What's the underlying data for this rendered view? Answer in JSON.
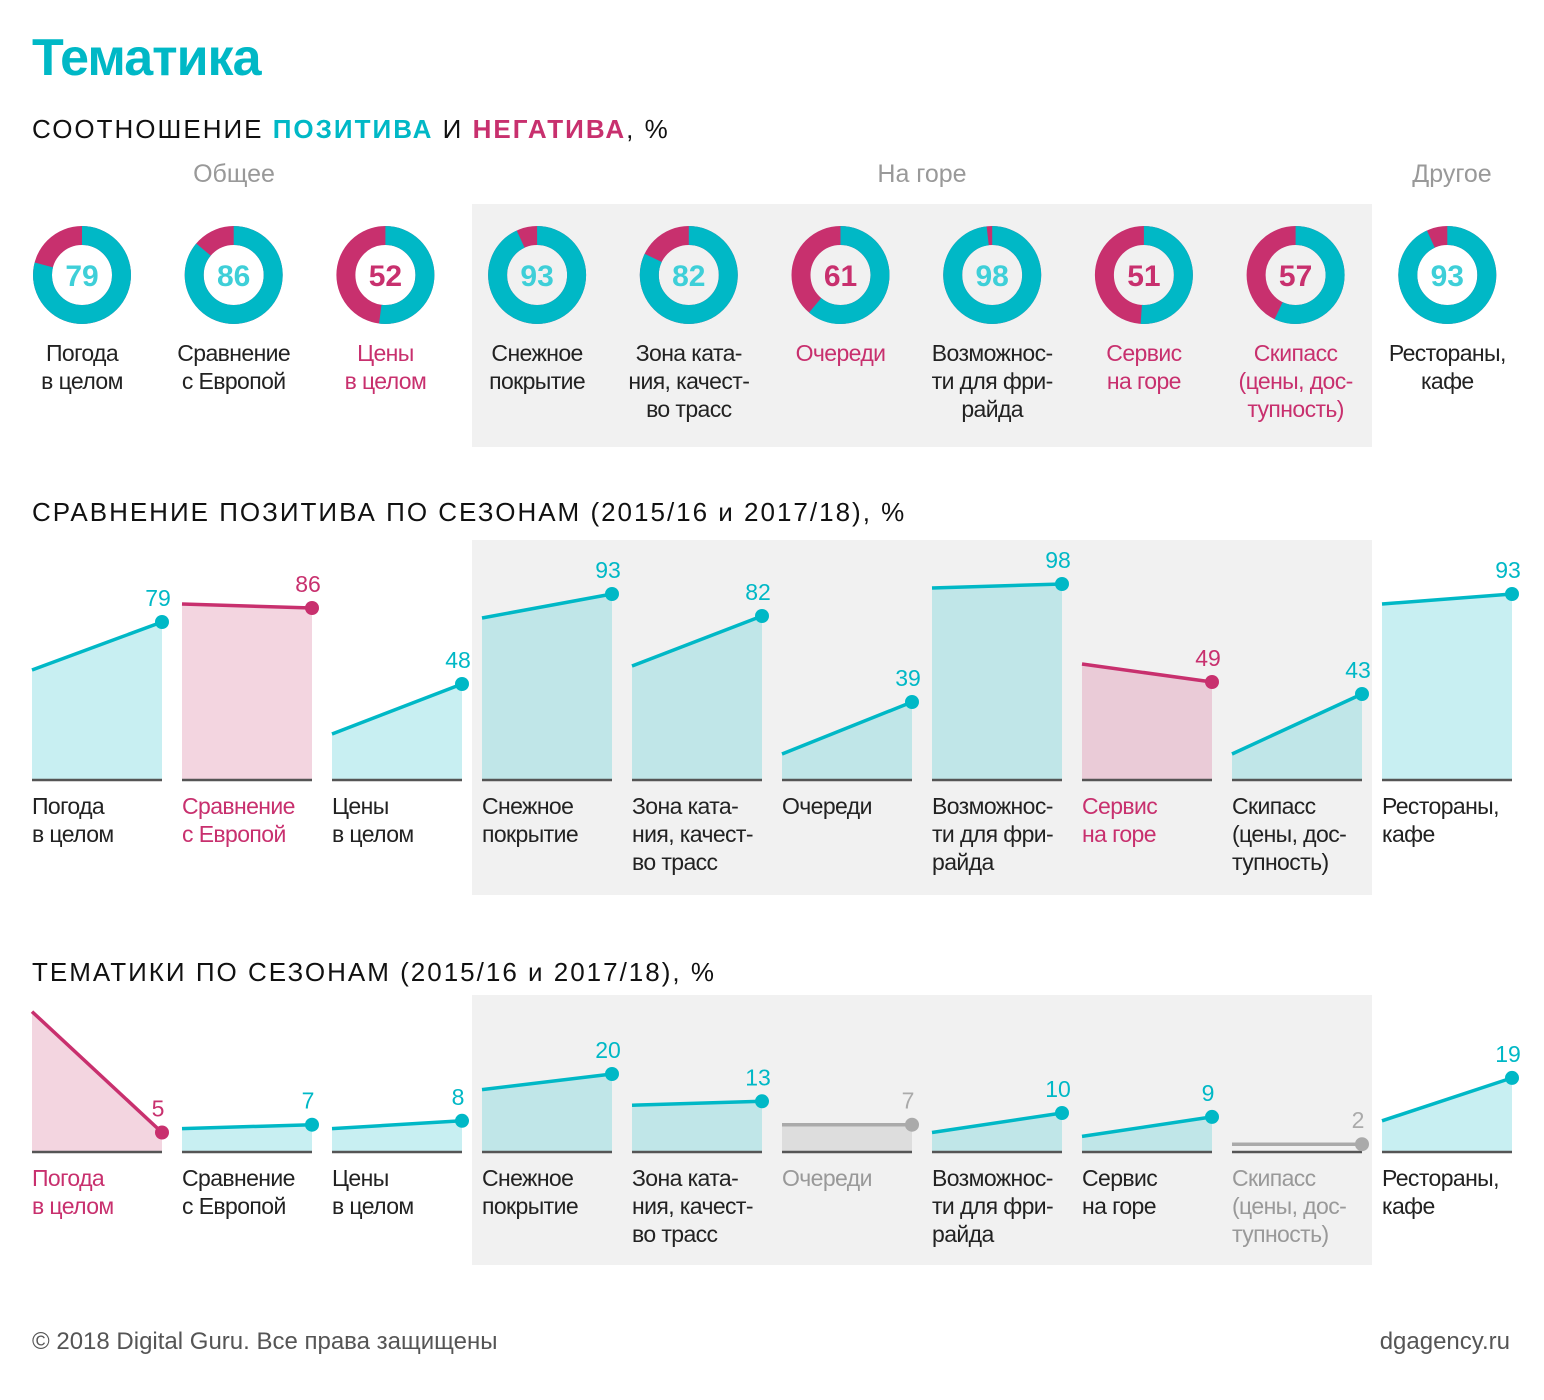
{
  "title": "Тематика",
  "section1": {
    "prefix": "СООТНОШЕНИЕ ",
    "positive_word": "ПОЗИТИВА",
    "mid": " И ",
    "negative_word": "НЕГАТИВА",
    "suffix": ", %"
  },
  "groups": [
    "Общее",
    "На горе",
    "Другое"
  ],
  "colors": {
    "positive": "#00B8C6",
    "negative": "#C8306E",
    "neutral": "#AAAAAA",
    "number_light": "#3ECFD8"
  },
  "donuts": [
    {
      "label_lines": [
        "Погода",
        "в целом"
      ],
      "positive": 79,
      "tone": "pos"
    },
    {
      "label_lines": [
        "Сравнение",
        "с Европой"
      ],
      "positive": 86,
      "tone": "pos"
    },
    {
      "label_lines": [
        "Цены",
        "в целом"
      ],
      "positive": 52,
      "tone": "neg"
    },
    {
      "label_lines": [
        "Снежное",
        "покрытие"
      ],
      "positive": 93,
      "tone": "pos"
    },
    {
      "label_lines": [
        "Зона ката-",
        "ния, качест-",
        "во трасс"
      ],
      "positive": 82,
      "tone": "pos"
    },
    {
      "label_lines": [
        "Очереди"
      ],
      "positive": 61,
      "tone": "neg"
    },
    {
      "label_lines": [
        "Возможнос-",
        "ти для фри-",
        "райда"
      ],
      "positive": 98,
      "tone": "pos"
    },
    {
      "label_lines": [
        "Сервис",
        "на горе"
      ],
      "positive": 51,
      "tone": "neg"
    },
    {
      "label_lines": [
        "Скипасс",
        "(цены, дос-",
        "тупность)"
      ],
      "positive": 57,
      "tone": "neg"
    },
    {
      "label_lines": [
        "Рестораны,",
        "кафе"
      ],
      "positive": 93,
      "tone": "pos"
    }
  ],
  "chart_data": [
    {
      "type": "area",
      "title": "СРАВНЕНИЕ ПОЗИТИВА ПО СЕЗОНАМ (2015/16 и 2017/18), %",
      "categories": [
        [
          "Погода",
          "в целом"
        ],
        [
          "Сравнение",
          "с Европой"
        ],
        [
          "Цены",
          "в целом"
        ],
        [
          "Снежное",
          "покрытие"
        ],
        [
          "Зона ката-",
          "ния, качест-",
          "во трасс"
        ],
        [
          "Очереди"
        ],
        [
          "Возможнос-",
          "ти для фри-",
          "райда"
        ],
        [
          "Сервис",
          "на горе"
        ],
        [
          "Скипасс",
          "(цены, дос-",
          "тупность)"
        ],
        [
          "Рестораны,",
          "кафе"
        ]
      ],
      "series": [
        {
          "name": "2015/16",
          "values": [
            55,
            88,
            23,
            81,
            57,
            13,
            96,
            58,
            13,
            88
          ]
        },
        {
          "name": "2017/18",
          "values": [
            79,
            86,
            48,
            93,
            82,
            39,
            98,
            49,
            43,
            93
          ]
        }
      ],
      "tones": [
        "pos",
        "neg",
        "pos",
        "pos",
        "pos",
        "pos",
        "pos",
        "neg",
        "pos",
        "pos"
      ],
      "ylim": [
        0,
        100
      ]
    },
    {
      "type": "area",
      "title": "ТЕМАТИКИ ПО СЕЗОНАМ (2015/16 и 2017/18), %",
      "categories": [
        [
          "Погода",
          "в целом"
        ],
        [
          "Сравнение",
          "с Европой"
        ],
        [
          "Цены",
          "в целом"
        ],
        [
          "Снежное",
          "покрытие"
        ],
        [
          "Зона ката-",
          "ния, качест-",
          "во трасс"
        ],
        [
          "Очереди"
        ],
        [
          "Возможнос-",
          "ти для фри-",
          "райда"
        ],
        [
          "Сервис",
          "на горе"
        ],
        [
          "Скипасс",
          "(цены, дос-",
          "тупность)"
        ],
        [
          "Рестораны,",
          "кафе"
        ]
      ],
      "series": [
        {
          "name": "2015/16",
          "values": [
            36,
            6,
            6,
            16,
            12,
            7,
            5,
            4,
            2,
            8
          ]
        },
        {
          "name": "2017/18",
          "values": [
            5,
            7,
            8,
            20,
            13,
            7,
            10,
            9,
            2,
            19
          ]
        }
      ],
      "tones": [
        "neg",
        "pos",
        "pos",
        "pos",
        "pos",
        "gray",
        "pos",
        "pos",
        "gray",
        "pos"
      ],
      "ylim": [
        0,
        40
      ]
    }
  ],
  "footer": {
    "copyright": "© 2018 Digital Guru. Все права защищены",
    "site": "dgagency.ru"
  }
}
